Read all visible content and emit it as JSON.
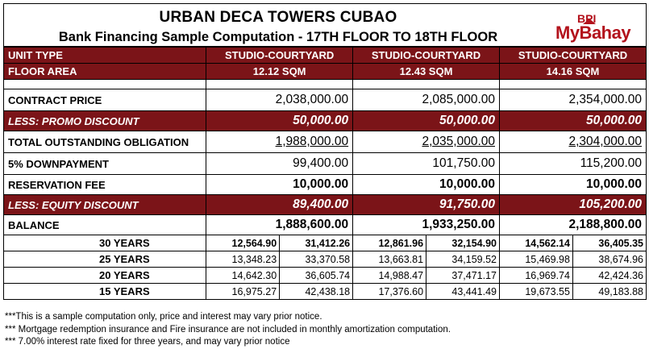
{
  "header": {
    "title": "URBAN DECA TOWERS CUBAO",
    "subtitle": "Bank Financing Sample Computation - 17TH FLOOR TO 18TH FLOOR",
    "logo_top": "BPI",
    "logo_main": "MyBahay",
    "brand_color": "#b3121c"
  },
  "table": {
    "unit_type_label": "UNIT TYPE",
    "floor_area_label": "FLOOR AREA",
    "units": [
      {
        "type": "STUDIO-COURTYARD",
        "area": "12.12 SQM"
      },
      {
        "type": "STUDIO-COURTYARD",
        "area": "12.43 SQM"
      },
      {
        "type": "STUDIO-COURTYARD",
        "area": "14.16 SQM"
      }
    ],
    "rows": {
      "contract_price": {
        "label": "CONTRACT PRICE",
        "values": [
          "2,038,000.00",
          "2,085,000.00",
          "2,354,000.00"
        ]
      },
      "promo_discount": {
        "label": "LESS: PROMO DISCOUNT",
        "values": [
          "50,000.00",
          "50,000.00",
          "50,000.00"
        ]
      },
      "total_obligation": {
        "label": "TOTAL OUTSTANDING OBLIGATION",
        "values": [
          "1,988,000.00",
          "2,035,000.00",
          "2,304,000.00"
        ]
      },
      "downpayment": {
        "label": "5% DOWNPAYMENT",
        "values": [
          "99,400.00",
          "101,750.00",
          "115,200.00"
        ]
      },
      "reservation_fee": {
        "label": "RESERVATION FEE",
        "values": [
          "10,000.00",
          "10,000.00",
          "10,000.00"
        ]
      },
      "equity_discount": {
        "label": "LESS: EQUITY DISCOUNT",
        "values": [
          "89,400.00",
          "91,750.00",
          "105,200.00"
        ]
      },
      "balance": {
        "label": "BALANCE",
        "values": [
          "1,888,600.00",
          "1,933,250.00",
          "2,188,800.00"
        ]
      }
    },
    "amortization": [
      {
        "label": "30 YEARS",
        "values": [
          "12,564.90",
          "31,412.26",
          "12,861.96",
          "32,154.90",
          "14,562.14",
          "36,405.35"
        ]
      },
      {
        "label": "25 YEARS",
        "values": [
          "13,348.23",
          "33,370.58",
          "13,663.81",
          "34,159.52",
          "15,469.98",
          "38,674.96"
        ]
      },
      {
        "label": "20 YEARS",
        "values": [
          "14,642.30",
          "36,605.74",
          "14,988.47",
          "37,471.17",
          "16,969.74",
          "42,424.36"
        ]
      },
      {
        "label": "15 YEARS",
        "values": [
          "16,975.27",
          "42,438.18",
          "17,376.60",
          "43,441.49",
          "19,673.55",
          "49,183.88"
        ]
      }
    ],
    "accent_color": "#7b1418"
  },
  "notes": [
    "***This is a sample computation only, price and interest may vary prior notice.",
    "*** Mortgage redemption insurance and Fire insurance are not included in monthly amortization computation.",
    "*** 7.00% interest rate fixed for three years, and may vary prior notice"
  ]
}
